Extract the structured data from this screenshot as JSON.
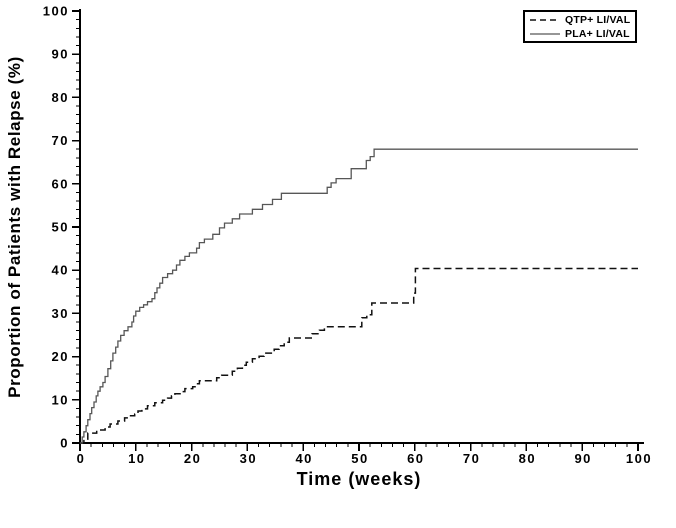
{
  "figure": {
    "background_color": "#ffffff",
    "axis_color": "#000000",
    "text_color": "#000000"
  },
  "chart_data": {
    "type": "line",
    "subtype": "kaplan-meier-step",
    "title": "",
    "xlabel": "Time (weeks)",
    "ylabel": "Proportion of Patients with Relapse (%)",
    "xlim": [
      0,
      100
    ],
    "ylim": [
      0,
      100
    ],
    "x_ticks": [
      0,
      10,
      20,
      30,
      40,
      50,
      60,
      70,
      80,
      90,
      100
    ],
    "y_ticks": [
      0,
      10,
      20,
      30,
      40,
      50,
      60,
      70,
      80,
      90,
      100
    ],
    "minor_tick_step": 2,
    "grid": false,
    "legend": {
      "position": "top-right",
      "border": true,
      "entries": [
        "QTP+ LI/VAL",
        "PLA+ LI/VAL"
      ]
    },
    "series": [
      {
        "name": "QTP+ LI/VAL",
        "style": "dashed",
        "color": "#111111",
        "points": [
          [
            0,
            0
          ],
          [
            0.7,
            0.9
          ],
          [
            1.4,
            2.3
          ],
          [
            3,
            3
          ],
          [
            4.5,
            3.7
          ],
          [
            5.4,
            4.4
          ],
          [
            6.8,
            5.1
          ],
          [
            8,
            5.8
          ],
          [
            8.9,
            6.3
          ],
          [
            9.8,
            6.7
          ],
          [
            10.4,
            7.4
          ],
          [
            11.1,
            7.9
          ],
          [
            12.1,
            8.6
          ],
          [
            13.4,
            9.3
          ],
          [
            14.8,
            9.9
          ],
          [
            15.7,
            10.4
          ],
          [
            16.4,
            10.9
          ],
          [
            17,
            11.4
          ],
          [
            18.2,
            11.9
          ],
          [
            18.8,
            12.6
          ],
          [
            20.2,
            13
          ],
          [
            20.9,
            13.7
          ],
          [
            21.4,
            14.4
          ],
          [
            24.5,
            15.1
          ],
          [
            25.4,
            15.7
          ],
          [
            27.3,
            16.6
          ],
          [
            28.2,
            17.3
          ],
          [
            29.1,
            18
          ],
          [
            29.8,
            18.7
          ],
          [
            30.9,
            19.5
          ],
          [
            32.1,
            20.1
          ],
          [
            33,
            20.8
          ],
          [
            34.8,
            21.7
          ],
          [
            35.7,
            22.5
          ],
          [
            36.6,
            23.3
          ],
          [
            37.5,
            24.3
          ],
          [
            41.6,
            25.3
          ],
          [
            42.9,
            26.1
          ],
          [
            43.8,
            26.9
          ],
          [
            50.5,
            29
          ],
          [
            51.4,
            29.7
          ],
          [
            52.3,
            32.4
          ],
          [
            59.8,
            34.7
          ],
          [
            60.1,
            40.4
          ],
          [
            100,
            40.4
          ]
        ]
      },
      {
        "name": "PLA+ LI/VAL",
        "style": "solid",
        "color": "#575757",
        "points": [
          [
            0,
            0
          ],
          [
            0.4,
            1.4
          ],
          [
            0.7,
            2.6
          ],
          [
            1.1,
            4
          ],
          [
            1.4,
            5.4
          ],
          [
            1.8,
            6.8
          ],
          [
            2.1,
            8.2
          ],
          [
            2.5,
            9.5
          ],
          [
            2.9,
            10.9
          ],
          [
            3.2,
            12
          ],
          [
            3.6,
            13
          ],
          [
            4.1,
            14
          ],
          [
            4.5,
            15.4
          ],
          [
            5,
            17.2
          ],
          [
            5.5,
            19
          ],
          [
            5.9,
            20.8
          ],
          [
            6.4,
            22.2
          ],
          [
            6.8,
            23.6
          ],
          [
            7.3,
            24.9
          ],
          [
            7.9,
            26
          ],
          [
            8.6,
            26.9
          ],
          [
            9.3,
            28
          ],
          [
            9.6,
            29.4
          ],
          [
            10,
            30.5
          ],
          [
            10.7,
            31.4
          ],
          [
            11.4,
            32
          ],
          [
            12.1,
            32.7
          ],
          [
            12.9,
            33.4
          ],
          [
            13.4,
            34.8
          ],
          [
            13.8,
            35.9
          ],
          [
            14.3,
            37
          ],
          [
            14.8,
            38.3
          ],
          [
            15.7,
            39.2
          ],
          [
            16.6,
            40
          ],
          [
            17.3,
            41.2
          ],
          [
            17.9,
            42.3
          ],
          [
            18.8,
            43.2
          ],
          [
            19.6,
            44
          ],
          [
            20.9,
            45.1
          ],
          [
            21.4,
            46.4
          ],
          [
            22.3,
            47.2
          ],
          [
            23.8,
            48.3
          ],
          [
            25,
            49.8
          ],
          [
            25.9,
            50.9
          ],
          [
            27.3,
            51.9
          ],
          [
            28.6,
            53
          ],
          [
            30.9,
            54.1
          ],
          [
            32.7,
            55.2
          ],
          [
            34.5,
            56.4
          ],
          [
            36.1,
            57.8
          ],
          [
            44.3,
            59.2
          ],
          [
            45,
            60.2
          ],
          [
            45.9,
            61.2
          ],
          [
            48.6,
            63.5
          ],
          [
            51.3,
            65.4
          ],
          [
            52,
            66.3
          ],
          [
            52.7,
            68
          ],
          [
            100,
            68
          ]
        ]
      }
    ]
  }
}
